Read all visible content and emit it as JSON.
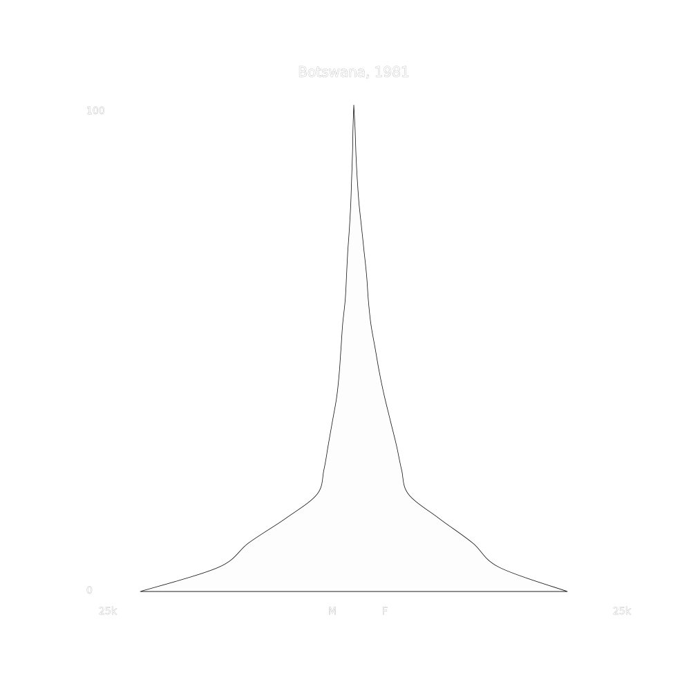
{
  "chart_data": {
    "type": "area",
    "title": "Botswana, 1981",
    "xlabel": "",
    "ylabel": "",
    "y_axis": {
      "range": [
        0,
        100
      ],
      "tick_labels": [
        "0",
        "100"
      ]
    },
    "x_axis": {
      "range": [
        -25000,
        25000
      ],
      "tick_labels": [
        "25k",
        "25k"
      ]
    },
    "series": [
      {
        "name": "M",
        "age": [
          0,
          5,
          10,
          15,
          20,
          25,
          30,
          35,
          40,
          45,
          50,
          55,
          60,
          65,
          70,
          75,
          80,
          85,
          90,
          95,
          100
        ],
        "population": [
          25000,
          15800,
          12300,
          8000,
          4300,
          3500,
          3000,
          2500,
          2000,
          1700,
          1500,
          1300,
          1000,
          850,
          700,
          500,
          350,
          250,
          150,
          100,
          50
        ]
      },
      {
        "name": "F",
        "age": [
          0,
          5,
          10,
          15,
          20,
          25,
          30,
          35,
          40,
          45,
          50,
          55,
          60,
          65,
          70,
          75,
          80,
          85,
          90,
          95,
          100
        ],
        "population": [
          25000,
          17000,
          13900,
          10000,
          6400,
          5600,
          5000,
          4300,
          3600,
          3000,
          2500,
          2000,
          1700,
          1500,
          1200,
          900,
          600,
          400,
          250,
          150,
          50
        ]
      }
    ],
    "grid": false,
    "legend": "none",
    "colors": {
      "fill": "#fdfdfd",
      "outline": "#111111"
    }
  }
}
